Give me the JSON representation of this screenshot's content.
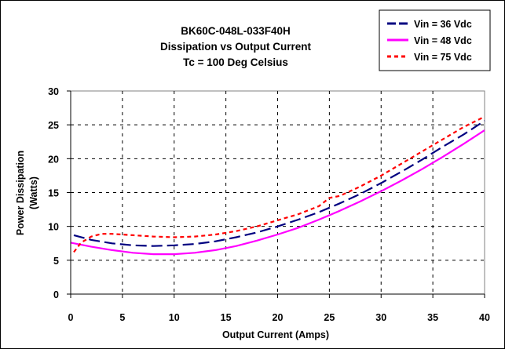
{
  "chart_data": {
    "type": "line",
    "title": [
      "BK60C-048L-033F40H",
      "Dissipation vs Output Current",
      "Tc = 100 Deg Celsius"
    ],
    "xlabel": "Output Current (Amps)",
    "ylabel": [
      "Power Dissipation",
      "(Watts)"
    ],
    "xlim": [
      0,
      40
    ],
    "ylim": [
      0,
      30
    ],
    "x_ticks": [
      "0",
      "5",
      "10",
      "15",
      "20",
      "25",
      "30",
      "35",
      "40"
    ],
    "y_ticks": [
      "0",
      "5",
      "10",
      "15",
      "20",
      "25",
      "30"
    ],
    "grid": true,
    "legend_position": "top-right",
    "series": [
      {
        "name": "Vin = 36 Vdc",
        "color": "#000080",
        "line_style": "long-dash",
        "x": [
          0.3,
          2,
          4,
          6,
          8,
          10,
          12,
          14,
          16,
          18,
          20,
          22,
          24,
          26,
          28,
          30,
          32,
          34,
          36,
          38,
          40
        ],
        "y": [
          8.7,
          8.0,
          7.5,
          7.2,
          7.1,
          7.2,
          7.4,
          7.8,
          8.4,
          9.1,
          10.0,
          11.0,
          12.1,
          13.4,
          14.8,
          16.4,
          18.1,
          19.9,
          21.8,
          23.6,
          25.6
        ]
      },
      {
        "name": "Vin = 48 Vdc",
        "color": "#FF00FF",
        "line_style": "solid",
        "x": [
          0,
          2,
          4,
          6,
          8,
          10,
          12,
          14,
          16,
          18,
          20,
          22,
          24,
          26,
          28,
          30,
          32,
          34,
          36,
          38,
          40
        ],
        "y": [
          7.6,
          7.0,
          6.5,
          6.1,
          5.9,
          5.9,
          6.1,
          6.5,
          7.1,
          7.9,
          8.8,
          9.8,
          11.0,
          12.3,
          13.7,
          15.2,
          16.8,
          18.5,
          20.3,
          22.2,
          24.2
        ]
      },
      {
        "name": "Vin = 75 Vdc",
        "color": "#FF0000",
        "line_style": "short-dash",
        "x": [
          0.3,
          1,
          2,
          3,
          4,
          6,
          8,
          10,
          12,
          14,
          16,
          18,
          20,
          22,
          24,
          25,
          26,
          28,
          30,
          32,
          34,
          36,
          38,
          40
        ],
        "y": [
          6.2,
          7.6,
          8.5,
          8.9,
          8.9,
          8.7,
          8.5,
          8.4,
          8.5,
          8.8,
          9.3,
          10.0,
          10.9,
          11.8,
          13.0,
          14.2,
          14.5,
          15.9,
          17.5,
          19.3,
          21.1,
          22.9,
          24.7,
          26.2
        ]
      }
    ]
  }
}
